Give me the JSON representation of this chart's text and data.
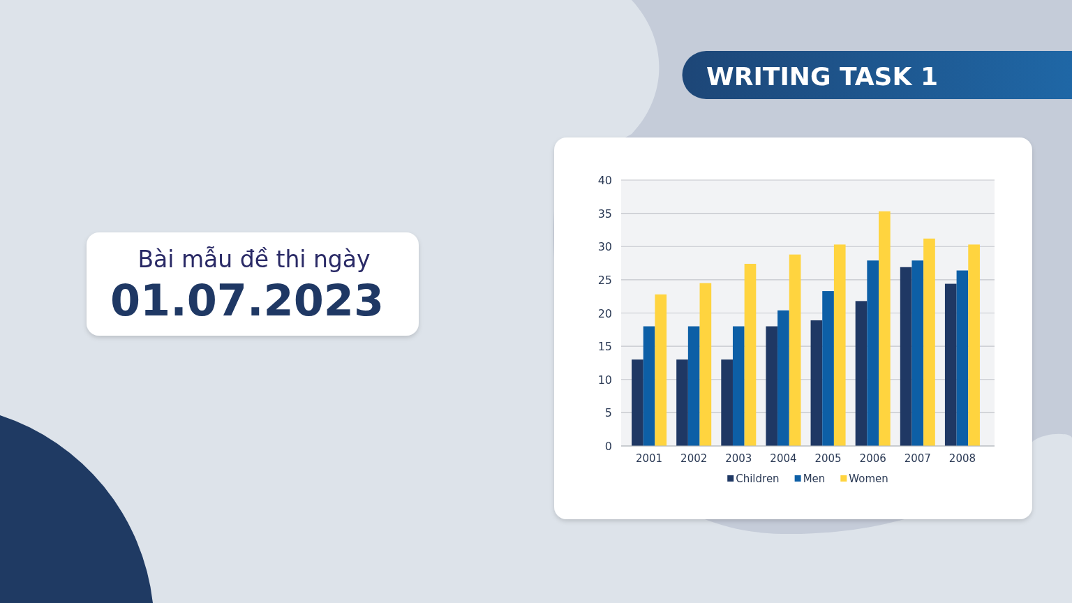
{
  "chart_data": {
    "type": "bar",
    "title": "WRITING TASK 1",
    "annotations": [
      "Bài mẫu đề thi ngày",
      "01.07.2023"
    ],
    "categories": [
      "2001",
      "2002",
      "2003",
      "2004",
      "2005",
      "2006",
      "2007",
      "2008"
    ],
    "series": [
      {
        "name": "Children",
        "color": "#1f3864",
        "values": [
          13,
          13,
          13,
          18,
          18.9,
          21.8,
          26.9,
          24.4
        ]
      },
      {
        "name": "Men",
        "color": "#0d5fa6",
        "values": [
          18,
          18,
          18,
          20.4,
          23.3,
          27.9,
          27.9,
          26.4
        ]
      },
      {
        "name": "Women",
        "color": "#ffd43f",
        "values": [
          22.8,
          24.5,
          27.4,
          28.8,
          30.3,
          35.3,
          31.2,
          30.3
        ]
      }
    ],
    "ylim": [
      0,
      40
    ],
    "yticks": [
      0,
      5,
      10,
      15,
      20,
      25,
      30,
      35,
      40
    ],
    "grid": "y",
    "legend": "bottom"
  }
}
